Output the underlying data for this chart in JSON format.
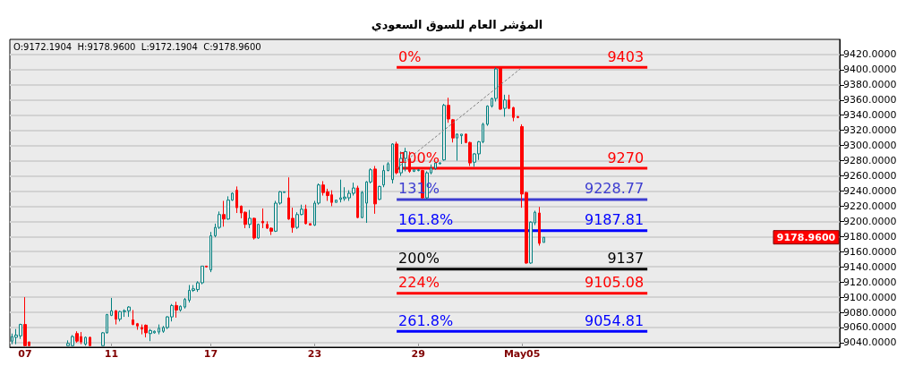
{
  "chart_data": {
    "type": "candlestick",
    "title": "المؤشر العام للسوق السعودي",
    "categories": [
      null,
      null,
      null,
      "07",
      null,
      null,
      null,
      null,
      null,
      null,
      null,
      null,
      null,
      null,
      null,
      null,
      null,
      null,
      null,
      null,
      null,
      null,
      null,
      "11",
      null,
      null,
      null,
      null,
      null,
      null,
      null,
      null,
      null,
      null,
      null,
      null,
      null,
      null,
      null,
      null,
      null,
      null,
      null,
      null,
      null,
      null,
      "17",
      null,
      null,
      null,
      null,
      null,
      null,
      null,
      null,
      null,
      null,
      null,
      null,
      null,
      null,
      null,
      null,
      null,
      null,
      null,
      null,
      null,
      null,
      null,
      "23",
      null,
      null,
      null,
      null,
      null,
      null,
      null,
      null,
      null,
      null,
      null,
      null,
      null,
      null,
      null,
      null,
      null,
      null,
      null,
      null,
      null,
      null,
      null,
      "29",
      null,
      null,
      null,
      null,
      null,
      null,
      null,
      null,
      null,
      null,
      null,
      null,
      null,
      null,
      null,
      null,
      null,
      null,
      null,
      null,
      null,
      null,
      null,
      "May05",
      null,
      null,
      null,
      null,
      null,
      null,
      null,
      null,
      null,
      null,
      null,
      null,
      null,
      null,
      null,
      null,
      null,
      null,
      null,
      null,
      null,
      null,
      null,
      null,
      null,
      null,
      null,
      null,
      null,
      null,
      null,
      null,
      null,
      null,
      null,
      null,
      null,
      null,
      null,
      null,
      null,
      null,
      null,
      null,
      null,
      null,
      null,
      null,
      null,
      null,
      null,
      null,
      null,
      null,
      null,
      null,
      null,
      null,
      null,
      null,
      null,
      null,
      null,
      null,
      null,
      null,
      null,
      null,
      null,
      null,
      null,
      null,
      null
    ],
    "series": [
      {
        "ohlc": [
          [
            9042,
            9052,
            9038,
            9048
          ],
          [
            9047,
            9058,
            9038,
            9050
          ],
          [
            9049,
            9065,
            9045,
            9064
          ],
          [
            9064,
            9100,
            9036,
            9036
          ],
          [
            9041,
            9041,
            9036,
            9036
          ],
          null,
          null,
          null,
          null,
          null,
          null,
          null,
          null,
          [
            9036,
            9043,
            9036,
            9039
          ],
          [
            9036,
            9050,
            9036,
            9048
          ],
          [
            9052,
            9055,
            9040,
            9042
          ],
          [
            9048,
            9054,
            9038,
            9041
          ],
          [
            9038,
            9048,
            9036,
            9047
          ],
          [
            9047,
            9048,
            9036,
            9036
          ],
          null,
          null,
          [
            9036,
            9054,
            9036,
            9053
          ],
          [
            9053,
            9078,
            9052,
            9077
          ],
          [
            9076,
            9099,
            9075,
            9082
          ],
          [
            9082,
            9083,
            9064,
            9071
          ],
          [
            9071,
            9082,
            9068,
            9081
          ],
          [
            9081,
            9084,
            9074,
            9082
          ],
          [
            9082,
            9088,
            9074,
            9087
          ],
          [
            9070,
            9083,
            9063,
            9064
          ],
          [
            9065,
            9066,
            9057,
            9062
          ],
          [
            9060,
            9064,
            9051,
            9058
          ],
          [
            9063,
            9064,
            9047,
            9053
          ],
          [
            9052,
            9058,
            9042,
            9056
          ],
          [
            9053,
            9056,
            9052,
            9055
          ],
          [
            9054,
            9064,
            9051,
            9059
          ],
          [
            9055,
            9062,
            9053,
            9060
          ],
          [
            9060,
            9075,
            9058,
            9074
          ],
          [
            9074,
            9091,
            9068,
            9089
          ],
          [
            9089,
            9094,
            9073,
            9083
          ],
          [
            9083,
            9089,
            9081,
            9088
          ],
          [
            9087,
            9099,
            9085,
            9097
          ],
          [
            9096,
            9116,
            9093,
            9109
          ],
          [
            9109,
            9116,
            9107,
            9111
          ],
          [
            9110,
            9121,
            9107,
            9119
          ],
          [
            9119,
            9141,
            9117,
            9141
          ],
          [
            9141,
            9141,
            9139,
            9140
          ],
          [
            9136,
            9186,
            9133,
            9181
          ],
          [
            9181,
            9197,
            9179,
            9192
          ],
          [
            9192,
            9213,
            9190,
            9209
          ],
          [
            9209,
            9227,
            9193,
            9203
          ],
          [
            9203,
            9233,
            9202,
            9228
          ],
          [
            9228,
            9238,
            9227,
            9237
          ],
          [
            9241,
            9246,
            9211,
            9218
          ],
          [
            9220,
            9221,
            9204,
            9211
          ],
          [
            9212,
            9213,
            9191,
            9196
          ],
          [
            9196,
            9215,
            9191,
            9204
          ],
          [
            9204,
            9205,
            9176,
            9178
          ],
          [
            9178,
            9197,
            9177,
            9196
          ],
          [
            9200,
            9217,
            9191,
            9198
          ],
          [
            9196,
            9200,
            9190,
            9191
          ],
          [
            9191,
            9192,
            9182,
            9187
          ],
          [
            9187,
            9227,
            9186,
            9224
          ],
          [
            9224,
            9240,
            9222,
            9239
          ],
          [
            9238,
            9239,
            9238,
            9239
          ],
          [
            9231,
            9258,
            9202,
            9203
          ],
          [
            9204,
            9218,
            9185,
            9192
          ],
          [
            9192,
            9212,
            9190,
            9209
          ],
          [
            9209,
            9222,
            9208,
            9216
          ],
          [
            9216,
            9222,
            9196,
            9197
          ],
          [
            9197,
            9197,
            9195,
            9195
          ],
          [
            9195,
            9227,
            9194,
            9224
          ],
          [
            9224,
            9250,
            9222,
            9248
          ],
          [
            9248,
            9253,
            9234,
            9238
          ],
          [
            9239,
            9243,
            9227,
            9234
          ],
          [
            9235,
            9241,
            9220,
            9225
          ],
          [
            9225,
            9228,
            9225,
            9228
          ],
          [
            9229,
            9255,
            9225,
            9231
          ],
          [
            9230,
            9245,
            9227,
            9232
          ],
          [
            9231,
            9241,
            9227,
            9237
          ],
          [
            9237,
            9251,
            9234,
            9244
          ],
          [
            9244,
            9247,
            9204,
            9205
          ],
          [
            9205,
            9240,
            9204,
            9238
          ],
          [
            9224,
            9253,
            9198,
            9252
          ],
          [
            9252,
            9270,
            9250,
            9268
          ],
          [
            9269,
            9273,
            9210,
            9223
          ],
          [
            9229,
            9247,
            9228,
            9246
          ],
          [
            9248,
            9274,
            9245,
            9267
          ],
          [
            9267,
            9278,
            9266,
            9276
          ],
          [
            9255,
            9303,
            9250,
            9302
          ],
          [
            9302,
            9305,
            9262,
            9264
          ],
          [
            9264,
            9292,
            9260,
            9283
          ],
          [
            9283,
            9297,
            9266,
            9292
          ],
          [
            9283,
            9292,
            9264,
            9266
          ],
          [
            9266,
            9268,
            9265,
            9268
          ],
          [
            9267,
            9269,
            9266,
            9268
          ],
          [
            9267,
            9268,
            9230,
            9231
          ],
          [
            9231,
            9266,
            9229,
            9264
          ],
          [
            9264,
            9275,
            9262,
            9270
          ],
          [
            9270,
            9278,
            9268,
            9277
          ],
          [
            9276,
            9278,
            9275,
            9277
          ],
          [
            9281,
            9355,
            9280,
            9353
          ],
          [
            9353,
            9363,
            9330,
            9335
          ],
          [
            9334,
            9335,
            9304,
            9310
          ],
          [
            9310,
            9316,
            9280,
            9315
          ],
          [
            9313,
            9315,
            9302,
            9315
          ],
          [
            9315,
            9316,
            9303,
            9304
          ],
          [
            9304,
            9305,
            9273,
            9277
          ],
          [
            9278,
            9290,
            9272,
            9289
          ],
          [
            9289,
            9306,
            9281,
            9305
          ],
          [
            9305,
            9330,
            9303,
            9328
          ],
          [
            9328,
            9353,
            9326,
            9352
          ],
          [
            9352,
            9363,
            9350,
            9362
          ],
          [
            9362,
            9403,
            9358,
            9401
          ],
          [
            9403,
            9403,
            9347,
            9348
          ],
          [
            9349,
            9367,
            9338,
            9360
          ],
          [
            9360,
            9367,
            9348,
            9349
          ],
          [
            9350,
            9351,
            9332,
            9337
          ],
          [
            9338,
            9339,
            9336,
            9337
          ],
          [
            9325,
            9328,
            9218,
            9236
          ],
          [
            9238,
            9239,
            9144,
            9145
          ],
          [
            9145,
            9200,
            9144,
            9199
          ],
          [
            9198,
            9214,
            9195,
            9212
          ],
          [
            9211,
            9219,
            9168,
            9171
          ],
          [
            9172.1904,
            9178.96,
            9172.1904,
            9178.96
          ],
          null,
          null,
          null,
          null,
          null,
          null,
          null,
          null,
          null,
          null,
          null,
          null,
          null,
          null,
          null,
          null,
          null,
          null,
          null,
          null,
          null,
          null,
          null,
          null,
          null,
          null,
          null,
          null,
          null,
          null,
          null,
          null,
          null,
          null,
          null,
          null,
          null,
          null,
          null,
          null,
          null,
          null,
          null,
          null,
          null,
          null,
          null,
          null,
          null,
          null,
          null,
          null,
          null,
          null,
          null,
          null,
          null,
          null,
          null,
          null,
          null,
          null,
          null,
          null,
          null,
          null,
          null,
          null
        ]
      },
      {
        "type": "line",
        "color": "#808080",
        "line_style": "dashed",
        "values": [
          null,
          null,
          null,
          null,
          null,
          null,
          null,
          null,
          null,
          null,
          null,
          null,
          null,
          null,
          null,
          null,
          null,
          null,
          null,
          null,
          null,
          null,
          null,
          null,
          null,
          null,
          null,
          null,
          null,
          null,
          null,
          null,
          null,
          null,
          null,
          null,
          null,
          null,
          null,
          null,
          null,
          null,
          null,
          null,
          null,
          null,
          null,
          null,
          null,
          null,
          null,
          null,
          null,
          null,
          null,
          null,
          null,
          null,
          null,
          null,
          null,
          null,
          null,
          null,
          null,
          null,
          null,
          null,
          null,
          null,
          null,
          null,
          null,
          null,
          null,
          null,
          null,
          null,
          null,
          null,
          null,
          null,
          null,
          null,
          null,
          null,
          null,
          null,
          null,
          9270,
          null,
          null,
          null,
          null,
          null,
          null,
          null,
          null,
          null,
          null,
          null,
          null,
          null,
          null,
          null,
          null,
          null,
          null,
          null,
          null,
          null,
          null,
          null,
          null,
          null,
          null,
          null,
          null,
          9403,
          null,
          null,
          null,
          null,
          null,
          null,
          null,
          null,
          null,
          null,
          null,
          null,
          null,
          null,
          null,
          null,
          null,
          null,
          null,
          null,
          null,
          null,
          null,
          null,
          null,
          null,
          null,
          null,
          null,
          null,
          null,
          null,
          null,
          null,
          null,
          null,
          null,
          null,
          null,
          null,
          null,
          null,
          null,
          null,
          null,
          null,
          null,
          null,
          null,
          null,
          null,
          null,
          null,
          null,
          null,
          null,
          null,
          null,
          null,
          null,
          null,
          null,
          null,
          null,
          null,
          null,
          null,
          null,
          null,
          null,
          null,
          null,
          null
        ]
      }
    ],
    "ylim": [
      9034,
      9440
    ],
    "yticks": [
      {
        "value": 9040,
        "label": "9040.0000"
      },
      {
        "value": 9060,
        "label": "9060.0000"
      },
      {
        "value": 9080,
        "label": "9080.0000"
      },
      {
        "value": 9100,
        "label": "9100.0000"
      },
      {
        "value": 9120,
        "label": "9120.0000"
      },
      {
        "value": 9140,
        "label": "9140.0000"
      },
      {
        "value": 9160,
        "label": "9160.0000"
      },
      {
        "value": 9180,
        "label": "9180.0000"
      },
      {
        "value": 9200,
        "label": "9200.0000"
      },
      {
        "value": 9220,
        "label": "9220.0000"
      },
      {
        "value": 9240,
        "label": "9240.0000"
      },
      {
        "value": 9260,
        "label": "9260.0000"
      },
      {
        "value": 9280,
        "label": "9280.0000"
      },
      {
        "value": 9300,
        "label": "9300.0000"
      },
      {
        "value": 9320,
        "label": "9320.0000"
      },
      {
        "value": 9340,
        "label": "9340.0000"
      },
      {
        "value": 9360,
        "label": "9360.0000"
      },
      {
        "value": 9380,
        "label": "9380.0000"
      },
      {
        "value": 9400,
        "label": "9400.0000"
      },
      {
        "value": 9420,
        "label": "9420.0000"
      }
    ],
    "grid": "y",
    "ref_lines": [
      {
        "axis": "y",
        "value": 9403,
        "label": "9403",
        "color": "#ff0000"
      },
      {
        "axis": "y",
        "value": 9270,
        "label": "9270",
        "color": "#ff0000"
      },
      {
        "axis": "y",
        "value": 9228.77,
        "label": "9228.77",
        "color": "#3c3cd0"
      },
      {
        "axis": "y",
        "value": 9187.81,
        "label": "9187.81",
        "color": "#0000ff"
      },
      {
        "axis": "y",
        "value": 9137,
        "label": "9137",
        "color": "#000000"
      },
      {
        "axis": "y",
        "value": 9105.08,
        "label": "9105.08",
        "color": "#ff0000"
      },
      {
        "axis": "y",
        "value": 9054.81,
        "label": "9054.81",
        "color": "#0000ff"
      }
    ],
    "annotations": [
      "O:9172.1904  H:9178.9600  L:9172.1904  C:9178.9600",
      "9178.9600",
      {
        "text": "0%",
        "y": 9403
      },
      {
        "text": "100%",
        "y": 9270
      },
      {
        "text": "131%",
        "y": 9228.77
      },
      {
        "text": "161.8%",
        "y": 9187.81
      },
      {
        "text": "200%",
        "y": 9137
      },
      {
        "text": "224%",
        "y": 9105.08
      },
      {
        "text": "261.8%",
        "y": 9054.81
      }
    ]
  }
}
